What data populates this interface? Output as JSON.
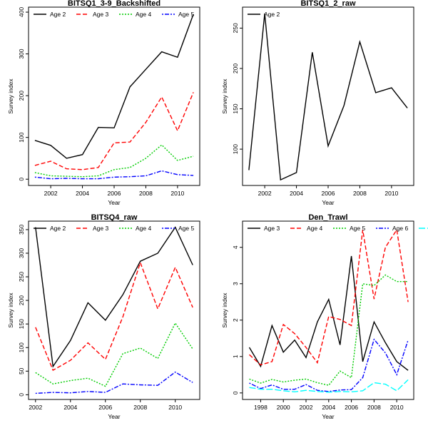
{
  "chart_data": [
    {
      "type": "line",
      "title": "BITSQ1_3-9_Backshifted",
      "xlabel": "Year",
      "ylabel": "Survey index",
      "x": [
        2001,
        2002,
        2003,
        2004,
        2005,
        2006,
        2007,
        2008,
        2009,
        2010,
        2011
      ],
      "xlim": [
        2000.6,
        2011.4
      ],
      "ylim": [
        -15,
        412
      ],
      "xticks": [
        2002,
        2004,
        2006,
        2008,
        2010
      ],
      "yticks": [
        0,
        100,
        200,
        300,
        400
      ],
      "legend": "top",
      "series": [
        {
          "name": "Age 2",
          "color": "#000000",
          "dash": "solid",
          "values": [
            93,
            81,
            50,
            59,
            124,
            123,
            221,
            263,
            305,
            292,
            395
          ]
        },
        {
          "name": "Age 3",
          "color": "#ff0000",
          "dash": "dashed",
          "values": [
            33,
            43,
            25,
            23,
            28,
            87,
            89,
            136,
            197,
            116,
            208
          ]
        },
        {
          "name": "Age 4",
          "color": "#00cc00",
          "dash": "dotted",
          "values": [
            16,
            8,
            7,
            6,
            8,
            23,
            28,
            50,
            82,
            45,
            55
          ]
        },
        {
          "name": "Age 5",
          "color": "#0000ff",
          "dash": "dotdash",
          "values": [
            5,
            1,
            2,
            1,
            1,
            5,
            6,
            8,
            20,
            11,
            9
          ]
        }
      ]
    },
    {
      "type": "line",
      "title": "BITSQ1_2_raw",
      "xlabel": "Year",
      "ylabel": "Survey index",
      "x": [
        2001,
        2002,
        2003,
        2004,
        2005,
        2006,
        2007,
        2008,
        2009,
        2010,
        2011
      ],
      "xlim": [
        2000.6,
        2011.4
      ],
      "ylim": [
        55,
        276
      ],
      "xticks": [
        2002,
        2004,
        2006,
        2008,
        2010
      ],
      "yticks": [
        100,
        150,
        200,
        250
      ],
      "legend": "top-left",
      "series": [
        {
          "name": "Age 2",
          "color": "#000000",
          "dash": "solid",
          "values": [
            74,
            268,
            62,
            71,
            220,
            104,
            154,
            233,
            170,
            176,
            151
          ]
        }
      ]
    },
    {
      "type": "line",
      "title": "BITSQ4_raw",
      "xlabel": "Year",
      "ylabel": "Survey index",
      "x": [
        2002,
        2003,
        2004,
        2005,
        2006,
        2007,
        2008,
        2009,
        2010,
        2011
      ],
      "xlim": [
        2001.6,
        2011.4
      ],
      "ylim": [
        -10,
        368
      ],
      "xticks": [
        2002,
        2004,
        2006,
        2008,
        2010
      ],
      "yticks": [
        0,
        50,
        100,
        150,
        200,
        250,
        300,
        350
      ],
      "legend": "top",
      "series": [
        {
          "name": "Age 2",
          "color": "#000000",
          "dash": "solid",
          "values": [
            355,
            60,
            115,
            195,
            158,
            212,
            283,
            300,
            355,
            275
          ]
        },
        {
          "name": "Age 3",
          "color": "#ff0000",
          "dash": "dashed",
          "values": [
            143,
            52,
            73,
            110,
            75,
            165,
            280,
            182,
            270,
            185
          ]
        },
        {
          "name": "Age 4",
          "color": "#00cc00",
          "dash": "dotted",
          "values": [
            47,
            23,
            30,
            35,
            18,
            87,
            99,
            77,
            152,
            97
          ]
        },
        {
          "name": "Age 5",
          "color": "#0000ff",
          "dash": "dotdash",
          "values": [
            3,
            5,
            4,
            7,
            5,
            23,
            21,
            20,
            48,
            26
          ]
        }
      ]
    },
    {
      "type": "line",
      "title": "Den_Trawl",
      "xlabel": "Year",
      "ylabel": "Survey index",
      "x": [
        1997,
        1998,
        1999,
        2000,
        2001,
        2002,
        2003,
        2004,
        2005,
        2006,
        2007,
        2008,
        2009,
        2010,
        2011
      ],
      "xlim": [
        1996.4,
        2011.5
      ],
      "ylim": [
        -0.18,
        4.72
      ],
      "xticks": [
        1998,
        2000,
        2002,
        2004,
        2006,
        2008,
        2010
      ],
      "yticks": [
        0,
        1,
        2,
        3,
        4
      ],
      "legend": "top",
      "series": [
        {
          "name": "Age 3",
          "color": "#000000",
          "dash": "solid",
          "values": [
            1.25,
            0.73,
            1.85,
            1.12,
            1.45,
            0.97,
            1.95,
            2.57,
            1.32,
            3.76,
            0.86,
            1.95,
            1.38,
            0.86,
            0.62
          ]
        },
        {
          "name": "Age 4",
          "color": "#ff0000",
          "dash": "dashed",
          "values": [
            1.05,
            0.77,
            0.86,
            1.88,
            1.63,
            1.25,
            0.83,
            2.1,
            2.02,
            1.85,
            4.48,
            2.58,
            4.0,
            4.48,
            2.5
          ]
        },
        {
          "name": "Age 5",
          "color": "#00cc00",
          "dash": "dotted",
          "values": [
            0.38,
            0.27,
            0.37,
            0.3,
            0.35,
            0.38,
            0.28,
            0.21,
            0.6,
            0.42,
            3.0,
            2.95,
            3.24,
            3.06,
            3.06
          ]
        },
        {
          "name": "Age 6",
          "color": "#0000ff",
          "dash": "dotdash",
          "values": [
            0.27,
            0.12,
            0.22,
            0.1,
            0.1,
            0.23,
            0.07,
            0.04,
            0.08,
            0.09,
            0.42,
            1.47,
            1.1,
            0.5,
            1.45
          ]
        },
        {
          "name": "",
          "color": "#00ffff",
          "dash": "longdash",
          "values": [
            0.15,
            0.1,
            0.1,
            0.06,
            0.03,
            0.07,
            0.04,
            0.02,
            0.04,
            0.03,
            0.06,
            0.28,
            0.24,
            0.06,
            0.36
          ]
        }
      ]
    }
  ]
}
